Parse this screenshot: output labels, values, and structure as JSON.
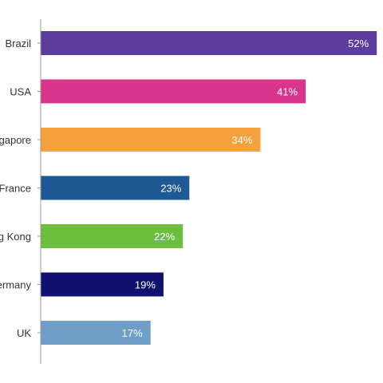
{
  "chart_data": {
    "type": "bar",
    "orientation": "horizontal",
    "title": "",
    "xlabel": "",
    "ylabel": "",
    "xlim": [
      0,
      60
    ],
    "grid": false,
    "legend": "none",
    "categories": [
      "Brazil",
      "USA",
      "Singapore",
      "France",
      "Hong Kong",
      "Germany",
      "UK"
    ],
    "values": [
      52,
      41,
      34,
      23,
      22,
      19,
      17
    ],
    "data_labels": [
      "52%",
      "41%",
      "34%",
      "23%",
      "22%",
      "19%",
      "17%"
    ],
    "colors": [
      "#5b3d9f",
      "#d9358c",
      "#f4a03c",
      "#1e5895",
      "#6cbf3d",
      "#10106e",
      "#6f9ec9"
    ],
    "label_color": "#ffffff",
    "axis_color": "#9a9a9a",
    "category_label_color": "#333333"
  }
}
